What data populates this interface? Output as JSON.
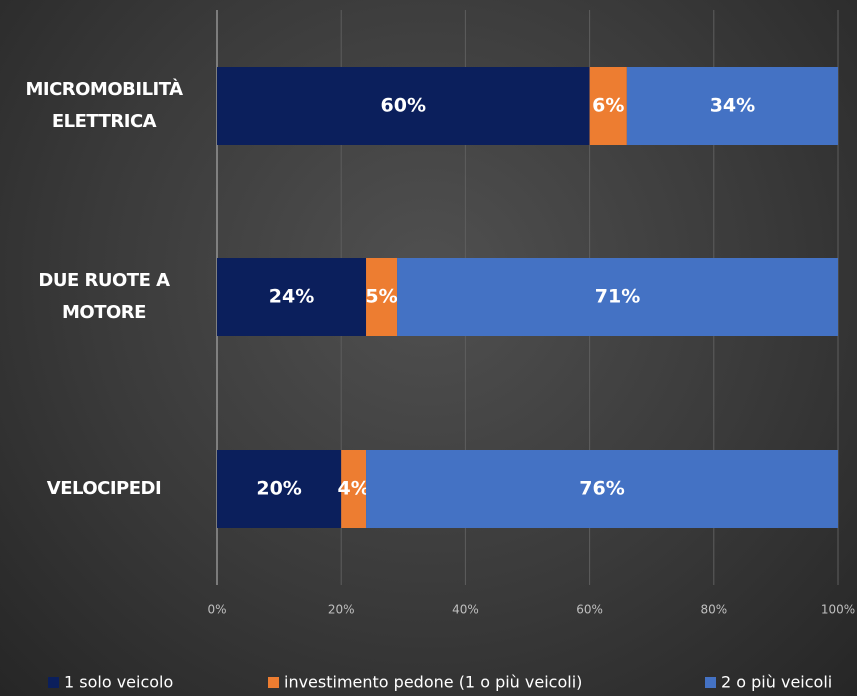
{
  "chart_data": {
    "type": "stacked-bar-horizontal",
    "categories": [
      "MICROMOBILITÀ ELETTRICA",
      "DUE RUOTE A MOTORE",
      "VELOCIPEDI"
    ],
    "series": [
      {
        "name": "1 solo veicolo",
        "color": "#0b1f5c",
        "values": [
          60,
          24,
          20
        ],
        "value_labels": [
          "60%",
          "24%",
          "20%"
        ]
      },
      {
        "name": "investimento pedone (1 o più veicoli)",
        "color": "#ed7d31",
        "values": [
          6,
          5,
          4
        ],
        "value_labels": [
          "6%",
          "5%",
          "4%"
        ]
      },
      {
        "name": "2 o più veicoli",
        "color": "#4472c4",
        "values": [
          34,
          71,
          76
        ],
        "value_labels": [
          "34%",
          "71%",
          "76%"
        ]
      }
    ],
    "xlim": [
      0,
      100
    ],
    "xticks": [
      {
        "value": 0,
        "label": "0%"
      },
      {
        "value": 20,
        "label": "20%"
      },
      {
        "value": 40,
        "label": "40%"
      },
      {
        "value": 60,
        "label": "60%"
      },
      {
        "value": 80,
        "label": "80%"
      },
      {
        "value": 100,
        "label": "100%"
      }
    ],
    "grid": true,
    "legend": "bottom"
  }
}
